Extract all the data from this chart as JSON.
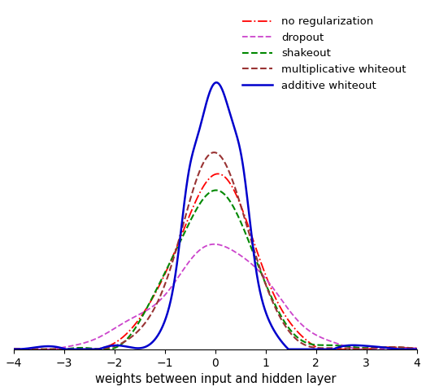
{
  "xlabel": "weights between input and hidden layer",
  "xlim": [
    -4,
    4
  ],
  "ylim": [
    0,
    0.58
  ],
  "xticks": [
    -4,
    -3,
    -2,
    -1,
    0,
    1,
    2,
    3,
    4
  ],
  "series": [
    {
      "label": "no regularization",
      "color": "#ff0000",
      "linestyle": "-.",
      "linewidth": 1.3,
      "zorder": 3
    },
    {
      "label": "dropout",
      "color": "#cc44cc",
      "linestyle": "--",
      "linewidth": 1.3,
      "zorder": 3
    },
    {
      "label": "shakeout",
      "color": "#008800",
      "linestyle": "--",
      "linewidth": 1.5,
      "zorder": 3
    },
    {
      "label": "multiplicative whiteout",
      "color": "#993333",
      "linestyle": "--",
      "linewidth": 1.5,
      "zorder": 3
    },
    {
      "label": "additive whiteout",
      "color": "#0000cc",
      "linestyle": "-",
      "linewidth": 1.8,
      "zorder": 4
    }
  ],
  "legend_loc": "upper right",
  "legend_fontsize": 9.5,
  "xlabel_fontsize": 10.5,
  "tick_fontsize": 10
}
